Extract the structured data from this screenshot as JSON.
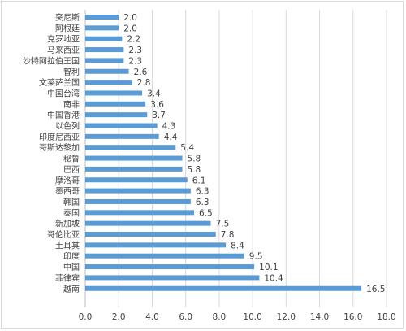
{
  "chart_data": {
    "type": "bar",
    "orientation": "horizontal",
    "title": "",
    "xlabel": "",
    "ylabel": "",
    "categories": [
      "突尼斯",
      "阿根廷",
      "克罗地亚",
      "马来西亚",
      "沙特阿拉伯王国",
      "智利",
      "文莱萨兰国",
      "中国台湾",
      "南非",
      "中国香港",
      "以色列",
      "印度尼西亚",
      "哥斯达黎加",
      "秘鲁",
      "巴西",
      "摩洛哥",
      "墨西哥",
      "韩国",
      "泰国",
      "新加坡",
      "哥伦比亚",
      "土耳其",
      "印度",
      "中国",
      "菲律宾",
      "越南"
    ],
    "values": [
      2.0,
      2.0,
      2.2,
      2.3,
      2.3,
      2.6,
      2.8,
      3.4,
      3.6,
      3.7,
      4.3,
      4.4,
      5.4,
      5.8,
      5.8,
      6.1,
      6.3,
      6.3,
      6.5,
      7.5,
      7.8,
      8.4,
      9.5,
      10.1,
      10.4,
      16.5
    ],
    "value_labels": [
      "2.0",
      "2.0",
      "2.2",
      "2.3",
      "2.3",
      "2.6",
      "2.8",
      "3.4",
      "3.6",
      "3.7",
      "4.3",
      "4.4",
      "5.4",
      "5.8",
      "5.8",
      "6.1",
      "6.3",
      "6.3",
      "6.5",
      "7.5",
      "7.8",
      "8.4",
      "9.5",
      "10.1",
      "10.4",
      "16.5"
    ],
    "xlim": [
      0,
      18
    ],
    "x_ticks": [
      0,
      2,
      4,
      6,
      8,
      10,
      12,
      14,
      16,
      18
    ],
    "x_tick_labels": [
      "0.0",
      "2.0",
      "4.0",
      "6.0",
      "8.0",
      "10.0",
      "12.0",
      "14.0",
      "16.0",
      "18.0"
    ],
    "grid": "vertical",
    "legend": "none",
    "bar_color": "#5b9bd5",
    "grid_color": "#d9d9d9",
    "text_color": "#404040"
  }
}
